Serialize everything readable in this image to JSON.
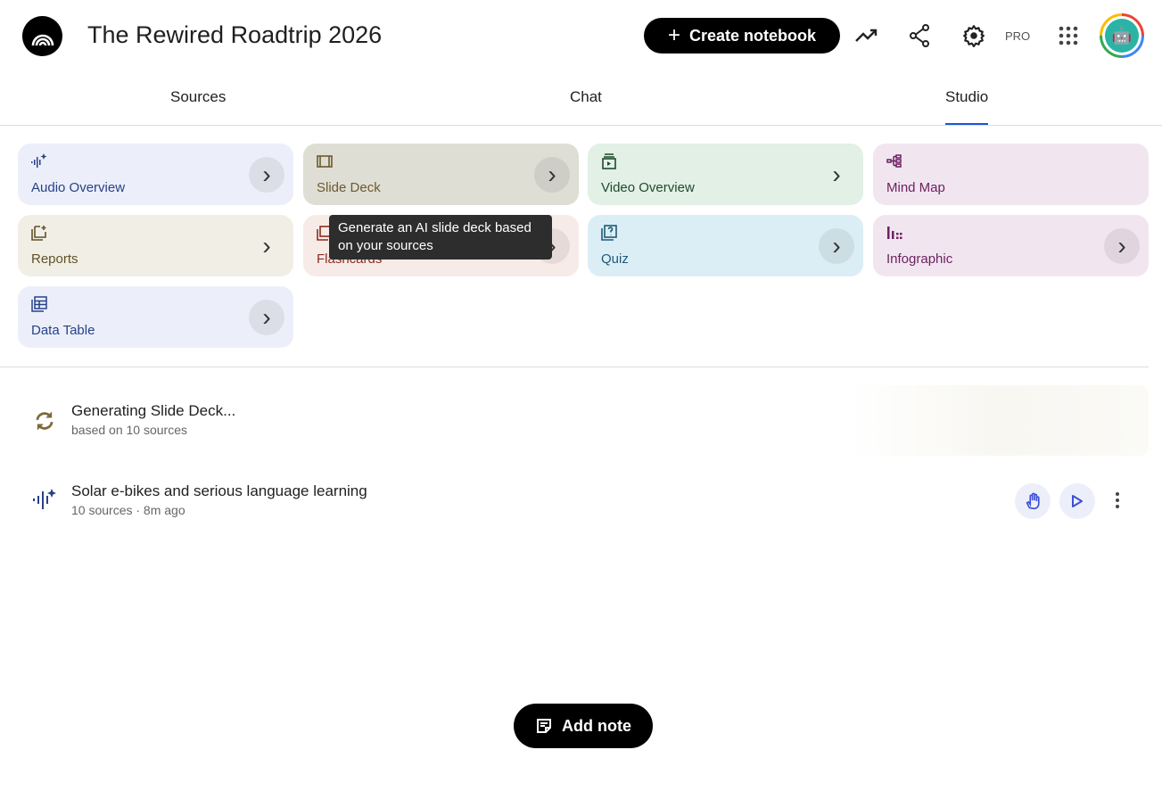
{
  "header": {
    "title": "The Rewired Roadtrip 2026",
    "create_label": "Create notebook",
    "pro_label": "PRO"
  },
  "tabs": [
    {
      "label": "Sources"
    },
    {
      "label": "Chat"
    },
    {
      "label": "Studio",
      "active": true
    }
  ],
  "studio_tools": [
    {
      "label": "Audio Overview",
      "icon": "audio-waveform-sparkle-icon",
      "bg": "#eceff9",
      "fg": "#27418a"
    },
    {
      "label": "Slide Deck",
      "icon": "slide-deck-icon",
      "bg": "#dfded5",
      "fg": "#6b5a2f"
    },
    {
      "label": "Video Overview",
      "icon": "video-icon",
      "bg": "#e2f0e6",
      "fg": "#1f4a2b"
    },
    {
      "label": "Mind Map",
      "icon": "mind-map-icon",
      "bg": "#f1e6f0",
      "fg": "#6d2160"
    },
    {
      "label": "Reports",
      "icon": "reports-icon",
      "bg": "#f1efe5",
      "fg": "#5f5128"
    },
    {
      "label": "Flashcards",
      "icon": "flashcards-icon",
      "bg": "#f7ebe8",
      "fg": "#8b2d1e"
    },
    {
      "label": "Quiz",
      "icon": "quiz-icon",
      "bg": "#dceef5",
      "fg": "#1e5a7a"
    },
    {
      "label": "Infographic",
      "icon": "infographic-icon",
      "bg": "#f1e6f0",
      "fg": "#6d2160"
    },
    {
      "label": "Data Table",
      "icon": "data-table-icon",
      "bg": "#eceff9",
      "fg": "#27418a"
    }
  ],
  "tooltip": "Generate an AI slide deck based on your sources",
  "outputs": [
    {
      "title": "Generating Slide Deck...",
      "subtitle": "based on 10 sources",
      "status": "generating"
    },
    {
      "title": "Solar e-bikes and serious language learning",
      "subtitle": "10 sources · 8m ago"
    }
  ],
  "add_note_label": "Add note"
}
